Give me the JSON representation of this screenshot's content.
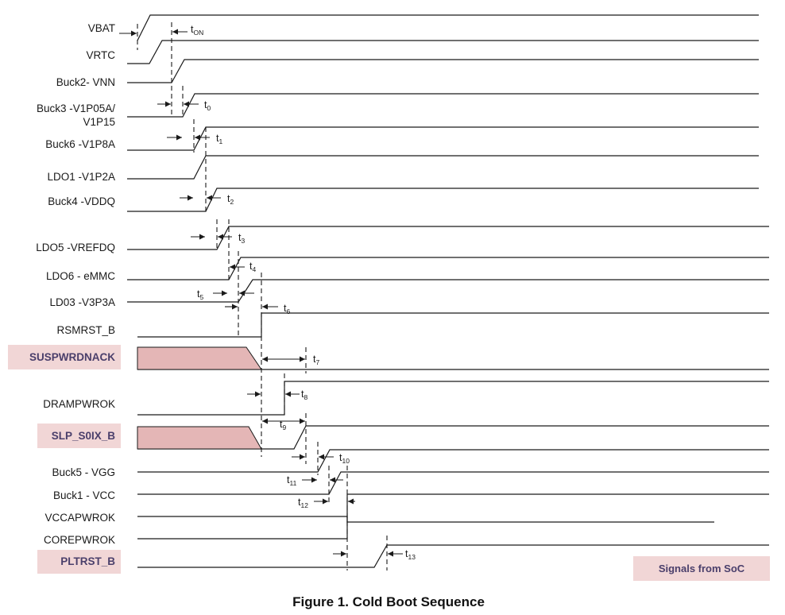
{
  "caption": "Figure 1.  Cold Boot Sequence",
  "legend": "Signals from SoC",
  "signals": [
    {
      "id": "vbat",
      "lines": [
        "VBAT"
      ],
      "soc": false
    },
    {
      "id": "vrtc",
      "lines": [
        "VRTC"
      ],
      "soc": false
    },
    {
      "id": "buck2",
      "lines": [
        "Buck2- VNN"
      ],
      "soc": false
    },
    {
      "id": "buck3",
      "lines": [
        "Buck3 -V1P05A/",
        "V1P15"
      ],
      "soc": false
    },
    {
      "id": "buck6",
      "lines": [
        "Buck6 -V1P8A"
      ],
      "soc": false
    },
    {
      "id": "ldo1",
      "lines": [
        "LDO1 -V1P2A"
      ],
      "soc": false
    },
    {
      "id": "buck4",
      "lines": [
        "Buck4 -VDDQ"
      ],
      "soc": false
    },
    {
      "id": "ldo5",
      "lines": [
        "LDO5 -VREFDQ"
      ],
      "soc": false
    },
    {
      "id": "ldo6",
      "lines": [
        "LDO6 - eMMC"
      ],
      "soc": false
    },
    {
      "id": "ldo3",
      "lines": [
        "LD03 -V3P3A"
      ],
      "soc": false
    },
    {
      "id": "rsmrst",
      "lines": [
        "RSMRST_B"
      ],
      "soc": false
    },
    {
      "id": "suspwrdnack",
      "lines": [
        "SUSPWRDNACK"
      ],
      "soc": true
    },
    {
      "id": "drampwrok",
      "lines": [
        "DRAMPWROK"
      ],
      "soc": false
    },
    {
      "id": "slp",
      "lines": [
        "SLP_S0IX_B"
      ],
      "soc": true
    },
    {
      "id": "buck5",
      "lines": [
        "Buck5 - VGG"
      ],
      "soc": false
    },
    {
      "id": "buck1",
      "lines": [
        "Buck1 - VCC"
      ],
      "soc": false
    },
    {
      "id": "vccapwrok",
      "lines": [
        "VCCAPWROK"
      ],
      "soc": false
    },
    {
      "id": "corepwrok",
      "lines": [
        "COREPWROK"
      ],
      "soc": false
    },
    {
      "id": "pltrst",
      "lines": [
        "PLTRST_B"
      ],
      "soc": true
    }
  ],
  "timings": [
    {
      "id": "ton",
      "main": "t",
      "sub": "ON"
    },
    {
      "id": "t0",
      "main": "t",
      "sub": "0"
    },
    {
      "id": "t1",
      "main": "t",
      "sub": "1"
    },
    {
      "id": "t2",
      "main": "t",
      "sub": "2"
    },
    {
      "id": "t3",
      "main": "t",
      "sub": "3"
    },
    {
      "id": "t4",
      "main": "t",
      "sub": "4"
    },
    {
      "id": "t5",
      "main": "t",
      "sub": "5"
    },
    {
      "id": "t6",
      "main": "t",
      "sub": "6"
    },
    {
      "id": "t7",
      "main": "t",
      "sub": "7"
    },
    {
      "id": "t8",
      "main": "t",
      "sub": "8"
    },
    {
      "id": "t9",
      "main": "t",
      "sub": "9"
    },
    {
      "id": "t10",
      "main": "t",
      "sub": "10"
    },
    {
      "id": "t11",
      "main": "t",
      "sub": "11"
    },
    {
      "id": "t12",
      "main": "t",
      "sub": "12"
    },
    {
      "id": "t13",
      "main": "t",
      "sub": "13"
    }
  ]
}
